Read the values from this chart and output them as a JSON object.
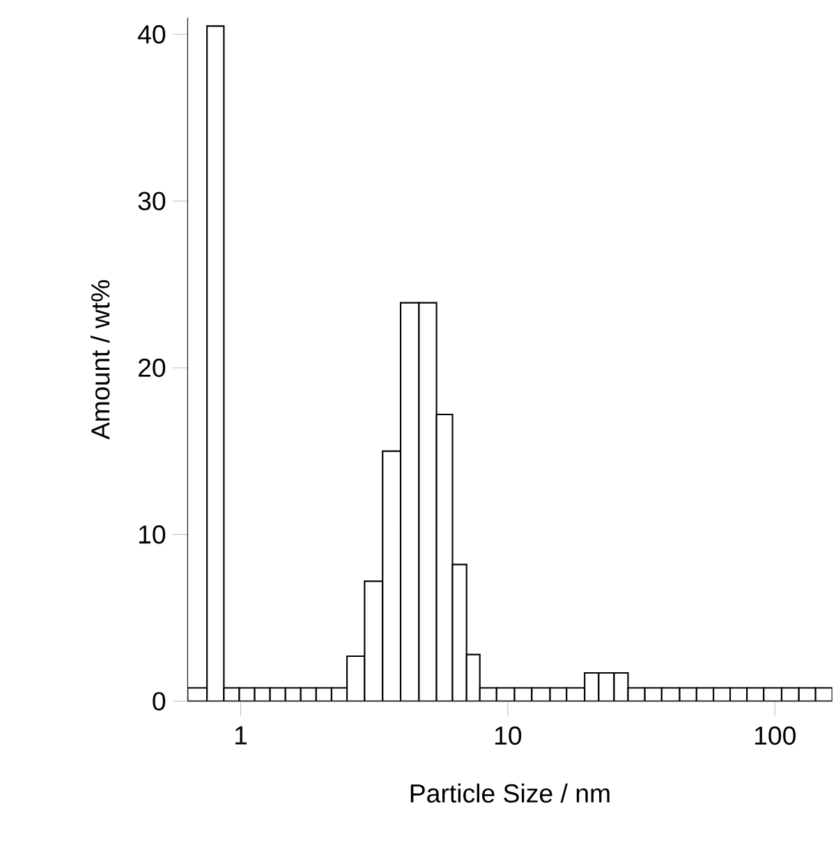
{
  "chart_data": {
    "type": "histogram",
    "xlabel": "Particle Size / nm",
    "ylabel": "Amount / wt%",
    "log": "x",
    "color": "#000000",
    "bins": [
      0.633,
      0.748,
      0.865,
      0.988,
      1.128,
      1.288,
      1.471,
      1.679,
      1.917,
      2.189,
      2.5,
      2.91,
      3.4,
      3.97,
      4.65,
      5.41,
      6.21,
      7.01,
      7.86,
      9.08,
      10.6,
      12.3,
      14.4,
      16.6,
      19.4,
      21.9,
      25.0,
      28.2,
      32.6,
      37.7,
      44.0,
      50.9,
      58.9,
      68.0,
      78.6,
      90.8,
      106,
      123,
      142,
      164
    ],
    "values": [
      0.8,
      40.5,
      0.8,
      0.8,
      0.8,
      0.8,
      0.8,
      0.8,
      0.8,
      0.8,
      2.7,
      7.2,
      15.0,
      23.9,
      23.9,
      17.2,
      8.2,
      2.8,
      0.8,
      0.8,
      0.8,
      0.8,
      0.8,
      0.8,
      1.7,
      1.7,
      1.7,
      0.8,
      0.8,
      0.8,
      0.8,
      0.8,
      0.8,
      0.8,
      0.8,
      0.8,
      0.8,
      0.8,
      0.8
    ],
    "xlim": [
      0.633,
      164
    ],
    "ylim": [
      0,
      41
    ],
    "xticks": [
      1,
      10,
      100
    ],
    "yticks": [
      0,
      10,
      20,
      30,
      40
    ]
  }
}
